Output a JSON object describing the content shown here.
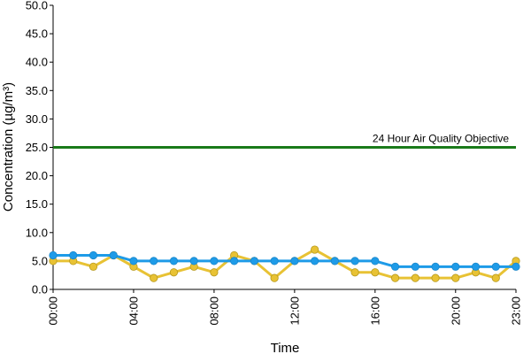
{
  "chart_data": {
    "type": "line",
    "title": "",
    "xlabel": "Time",
    "ylabel": "Concentration (µg/m³)",
    "ylim": [
      0,
      50
    ],
    "yticks": [
      "0.0",
      "5.0",
      "10.0",
      "15.0",
      "20.0",
      "25.0",
      "30.0",
      "35.0",
      "40.0",
      "45.0",
      "50.0"
    ],
    "xtick_labels": [
      "00:00",
      "04:00",
      "08:00",
      "12:00",
      "16:00",
      "20:00",
      "23:00"
    ],
    "xtick_hours": [
      0,
      4,
      8,
      12,
      16,
      20,
      23
    ],
    "x": [
      0,
      1,
      2,
      3,
      4,
      5,
      6,
      7,
      8,
      9,
      10,
      11,
      12,
      13,
      14,
      15,
      16,
      17,
      18,
      19,
      20,
      21,
      22,
      23
    ],
    "grid": false,
    "legend": "none",
    "reference_line": {
      "value": 25,
      "label": "24 Hour Air Quality Objective",
      "color": "#1a7a1a"
    },
    "series": [
      {
        "color": "#e8c234",
        "values": [
          5,
          5,
          4,
          6,
          4,
          2,
          3,
          4,
          3,
          6,
          5,
          2,
          5,
          7,
          5,
          3,
          3,
          2,
          2,
          2,
          2,
          3,
          2,
          5
        ]
      },
      {
        "color": "#1e9be8",
        "values": [
          6,
          6,
          6,
          6,
          5,
          5,
          5,
          5,
          5,
          5,
          5,
          5,
          5,
          5,
          5,
          5,
          5,
          4,
          4,
          4,
          4,
          4,
          4,
          4
        ]
      }
    ]
  }
}
